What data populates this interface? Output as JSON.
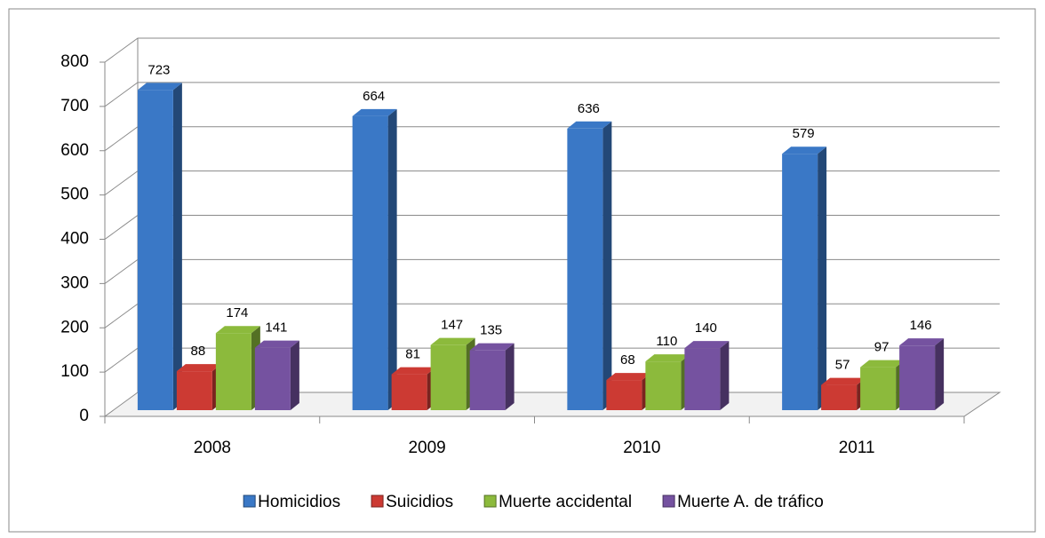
{
  "chart_data": {
    "type": "bar3d",
    "categories": [
      "2008",
      "2009",
      "2010",
      "2011"
    ],
    "series": [
      {
        "name": "Homicidios",
        "color": "#3a78c6",
        "values": [
          723,
          664,
          636,
          579
        ]
      },
      {
        "name": "Suicidios",
        "color": "#cc3a33",
        "values": [
          88,
          81,
          68,
          57
        ]
      },
      {
        "name": "Muerte accidental",
        "color": "#8cba3c",
        "values": [
          174,
          147,
          110,
          97
        ]
      },
      {
        "name": "Muerte A. de tráfico",
        "color": "#7552a0",
        "values": [
          141,
          135,
          140,
          146
        ]
      }
    ],
    "ylim": [
      0,
      800
    ],
    "yticks": [
      0,
      100,
      200,
      300,
      400,
      500,
      600,
      700,
      800
    ],
    "grid": true,
    "legend": "bottom"
  }
}
